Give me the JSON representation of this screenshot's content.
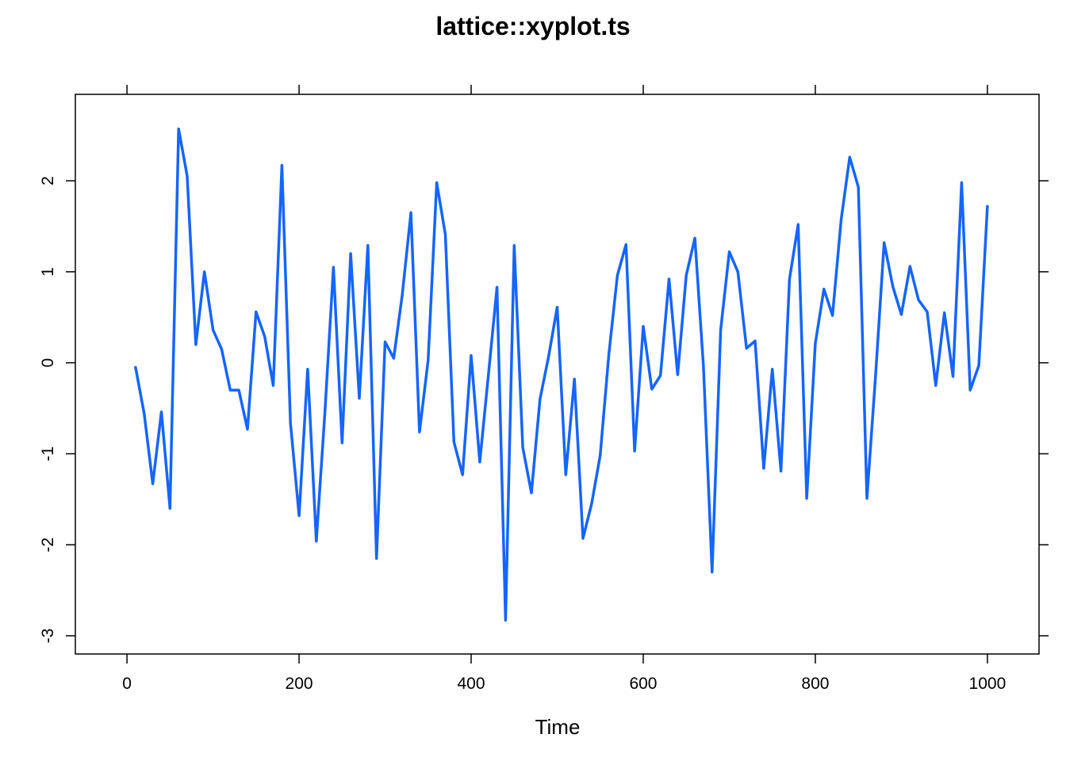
{
  "chart_data": {
    "type": "line",
    "title": "lattice::xyplot.ts",
    "xlabel": "Time",
    "ylabel": "",
    "xlim": [
      -60,
      1060
    ],
    "ylim": [
      -3.2,
      2.95
    ],
    "xticks": [
      0,
      200,
      400,
      600,
      800,
      1000
    ],
    "yticks": [
      -3,
      -2,
      -1,
      0,
      1,
      2
    ],
    "grid": false,
    "legend": "none",
    "line_color": "#1565FF",
    "series": [
      {
        "x": [
          10,
          20,
          30,
          40,
          50,
          60,
          70,
          80,
          90,
          100,
          110,
          120,
          130,
          140,
          150,
          160,
          170,
          180,
          190,
          200,
          210,
          220,
          230,
          240,
          250,
          260,
          270,
          280,
          290,
          300,
          310,
          320,
          330,
          340,
          350,
          360,
          370,
          380,
          390,
          400,
          410,
          420,
          430,
          440,
          450,
          460,
          470,
          480,
          490,
          500,
          510,
          520,
          530,
          540,
          550,
          560,
          570,
          580,
          590,
          600,
          610,
          620,
          630,
          640,
          650,
          660,
          670,
          680,
          690,
          700,
          710,
          720,
          730,
          740,
          750,
          760,
          770,
          780,
          790,
          800,
          810,
          820,
          830,
          840,
          850,
          860,
          870,
          880,
          890,
          900,
          910,
          920,
          930,
          940,
          950,
          960,
          970,
          980,
          990,
          1000
        ],
        "values": [
          -0.05,
          -0.56,
          -1.33,
          -0.54,
          -1.6,
          2.57,
          2.05,
          0.2,
          1.0,
          0.36,
          0.15,
          -0.3,
          -0.3,
          -0.73,
          0.56,
          0.29,
          -0.25,
          2.17,
          -0.66,
          -1.68,
          -0.07,
          -1.96,
          -0.55,
          1.05,
          -0.88,
          1.2,
          -0.39,
          1.29,
          -2.15,
          0.23,
          0.05,
          0.75,
          1.65,
          -0.76,
          0.03,
          1.98,
          1.41,
          -0.87,
          -1.23,
          0.08,
          -1.09,
          -0.14,
          0.83,
          -2.83,
          1.29,
          -0.93,
          -1.43,
          -0.4,
          0.07,
          0.61,
          -1.23,
          -0.18,
          -1.93,
          -1.55,
          -1.02,
          0.09,
          0.96,
          1.3,
          -0.97,
          0.4,
          -0.29,
          -0.14,
          0.92,
          -0.13,
          0.96,
          1.37,
          -0.04,
          -2.3,
          0.36,
          1.22,
          1.0,
          0.16,
          0.24,
          -1.16,
          -0.07,
          -1.19,
          0.92,
          1.52,
          -1.49,
          0.21,
          0.81,
          0.52,
          1.57,
          2.26,
          1.93,
          -1.49,
          -0.14,
          1.32,
          0.84,
          0.53,
          1.06,
          0.69,
          0.56,
          -0.25,
          0.55,
          -0.15,
          1.98,
          -0.3,
          -0.03,
          1.72
        ]
      }
    ]
  }
}
